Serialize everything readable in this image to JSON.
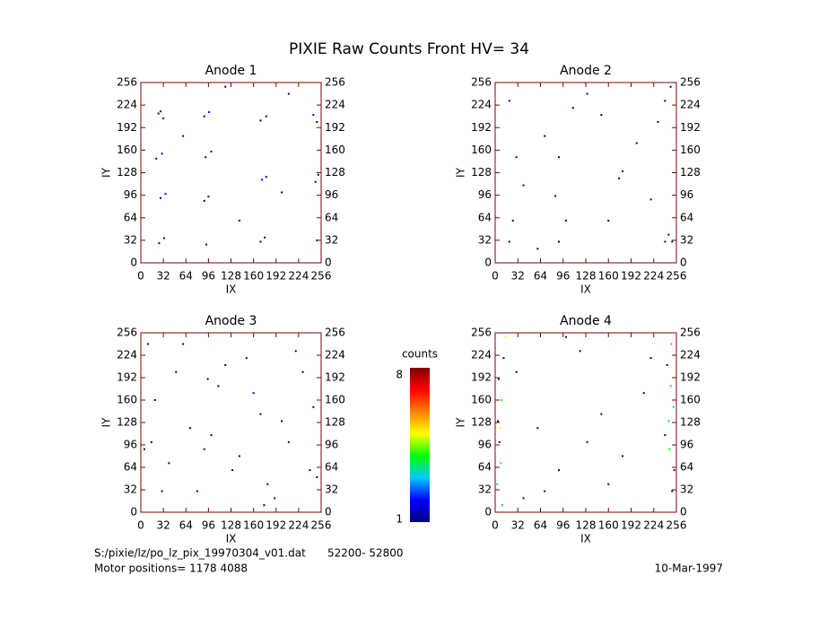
{
  "title": "PIXIE Raw Counts Front HV= 34",
  "chart_data": [
    {
      "type": "scatter",
      "title": "Anode 1",
      "x_label": "IX",
      "y_label": "IY",
      "xlim": [
        0,
        256
      ],
      "ylim": [
        0,
        256
      ],
      "xticks": [
        0,
        32,
        64,
        96,
        128,
        160,
        192,
        224,
        256
      ],
      "yticks": [
        0,
        32,
        64,
        96,
        128,
        160,
        192,
        224,
        256
      ],
      "x": [
        25,
        32,
        28,
        90,
        97,
        170,
        178,
        245,
        250,
        22,
        30,
        92,
        100,
        28,
        35,
        90,
        96,
        172,
        178,
        248,
        252,
        26,
        33,
        93,
        170,
        176,
        250,
        60,
        140,
        210,
        120,
        200
      ],
      "y": [
        212,
        205,
        215,
        208,
        214,
        202,
        208,
        210,
        200,
        148,
        155,
        150,
        158,
        92,
        98,
        88,
        94,
        118,
        122,
        115,
        125,
        28,
        35,
        26,
        30,
        36,
        32,
        180,
        60,
        240,
        250,
        100
      ],
      "counts": [
        1,
        2,
        1,
        1,
        2,
        1,
        1,
        2,
        1,
        1,
        2,
        1,
        1,
        1,
        2,
        1,
        1,
        2,
        1,
        1,
        1,
        2,
        1,
        1,
        1,
        1,
        2,
        1,
        1,
        1,
        1,
        1
      ]
    },
    {
      "type": "scatter",
      "title": "Anode 2",
      "x_label": "IX",
      "y_label": "IY",
      "xlim": [
        0,
        256
      ],
      "ylim": [
        0,
        256
      ],
      "xticks": [
        0,
        32,
        64,
        96,
        128,
        160,
        192,
        224,
        256
      ],
      "yticks": [
        0,
        32,
        64,
        96,
        128,
        160,
        192,
        224,
        256
      ],
      "x": [
        20,
        30,
        70,
        90,
        110,
        175,
        240,
        245,
        250,
        25,
        85,
        180,
        230,
        20,
        90,
        160,
        240,
        248,
        40,
        130,
        200,
        60,
        150,
        220,
        100
      ],
      "y": [
        230,
        150,
        180,
        150,
        220,
        120,
        230,
        40,
        30,
        60,
        95,
        130,
        200,
        30,
        30,
        60,
        30,
        250,
        110,
        240,
        170,
        20,
        210,
        90,
        60
      ],
      "counts": [
        1,
        1,
        1,
        1,
        1,
        1,
        1,
        1,
        1,
        1,
        1,
        1,
        1,
        1,
        1,
        1,
        1,
        1,
        1,
        1,
        1,
        1,
        1,
        1,
        1
      ]
    },
    {
      "type": "scatter",
      "title": "Anode 3",
      "x_label": "IX",
      "y_label": "IY",
      "xlim": [
        0,
        256
      ],
      "ylim": [
        0,
        256
      ],
      "xticks": [
        0,
        32,
        64,
        96,
        128,
        160,
        192,
        224,
        256
      ],
      "yticks": [
        0,
        32,
        64,
        96,
        128,
        160,
        192,
        224,
        256
      ],
      "x": [
        10,
        30,
        50,
        70,
        90,
        110,
        130,
        150,
        170,
        190,
        210,
        230,
        250,
        20,
        40,
        60,
        80,
        100,
        120,
        140,
        160,
        180,
        200,
        220,
        240,
        15,
        95,
        175,
        245,
        5
      ],
      "y": [
        240,
        30,
        200,
        120,
        90,
        180,
        60,
        220,
        140,
        20,
        100,
        200,
        50,
        160,
        70,
        240,
        30,
        110,
        210,
        80,
        170,
        40,
        130,
        230,
        60,
        100,
        190,
        10,
        150,
        90
      ],
      "counts": [
        1,
        1,
        1,
        1,
        1,
        1,
        1,
        1,
        1,
        1,
        1,
        1,
        1,
        1,
        1,
        1,
        1,
        1,
        1,
        1,
        1,
        1,
        1,
        1,
        1,
        1,
        1,
        1,
        1,
        1
      ]
    },
    {
      "type": "scatter",
      "title": "Anode 4",
      "x_label": "IX",
      "y_label": "IY",
      "xlim": [
        0,
        256
      ],
      "ylim": [
        0,
        256
      ],
      "xticks": [
        0,
        32,
        64,
        96,
        128,
        160,
        192,
        224,
        256
      ],
      "yticks": [
        0,
        32,
        64,
        96,
        128,
        160,
        192,
        224,
        256
      ],
      "x": [
        3,
        6,
        9,
        12,
        15,
        4,
        8,
        250,
        246,
        252,
        243,
        249,
        30,
        60,
        90,
        120,
        150,
        180,
        210,
        240,
        5,
        10,
        248,
        253,
        40,
        100,
        160,
        220,
        130,
        70,
        7,
        245
      ],
      "y": [
        40,
        100,
        160,
        220,
        250,
        130,
        70,
        30,
        90,
        150,
        210,
        240,
        200,
        120,
        60,
        230,
        140,
        80,
        170,
        110,
        190,
        10,
        180,
        60,
        20,
        250,
        40,
        220,
        100,
        30,
        120,
        130
      ],
      "counts": [
        3,
        2,
        4,
        2,
        5,
        1,
        3,
        2,
        4,
        3,
        2,
        6,
        1,
        1,
        1,
        1,
        1,
        1,
        1,
        1,
        2,
        3,
        4,
        2,
        1,
        1,
        1,
        1,
        1,
        1,
        5,
        3
      ]
    }
  ],
  "colorbar": {
    "label": "counts",
    "lim": [
      1,
      8
    ],
    "ticks": [
      1,
      8
    ],
    "colors": [
      "#000080",
      "#0000ff",
      "#00c8ff",
      "#00ff00",
      "#ffff00",
      "#ff8000",
      "#ff0000",
      "#800000"
    ]
  },
  "footer": {
    "file": "S:/pixie/lz/po_lz_pix_19970304_v01.dat",
    "range": "52200- 52800",
    "motor": "Motor positions= 1178  4088",
    "date": "10-Mar-1997"
  }
}
